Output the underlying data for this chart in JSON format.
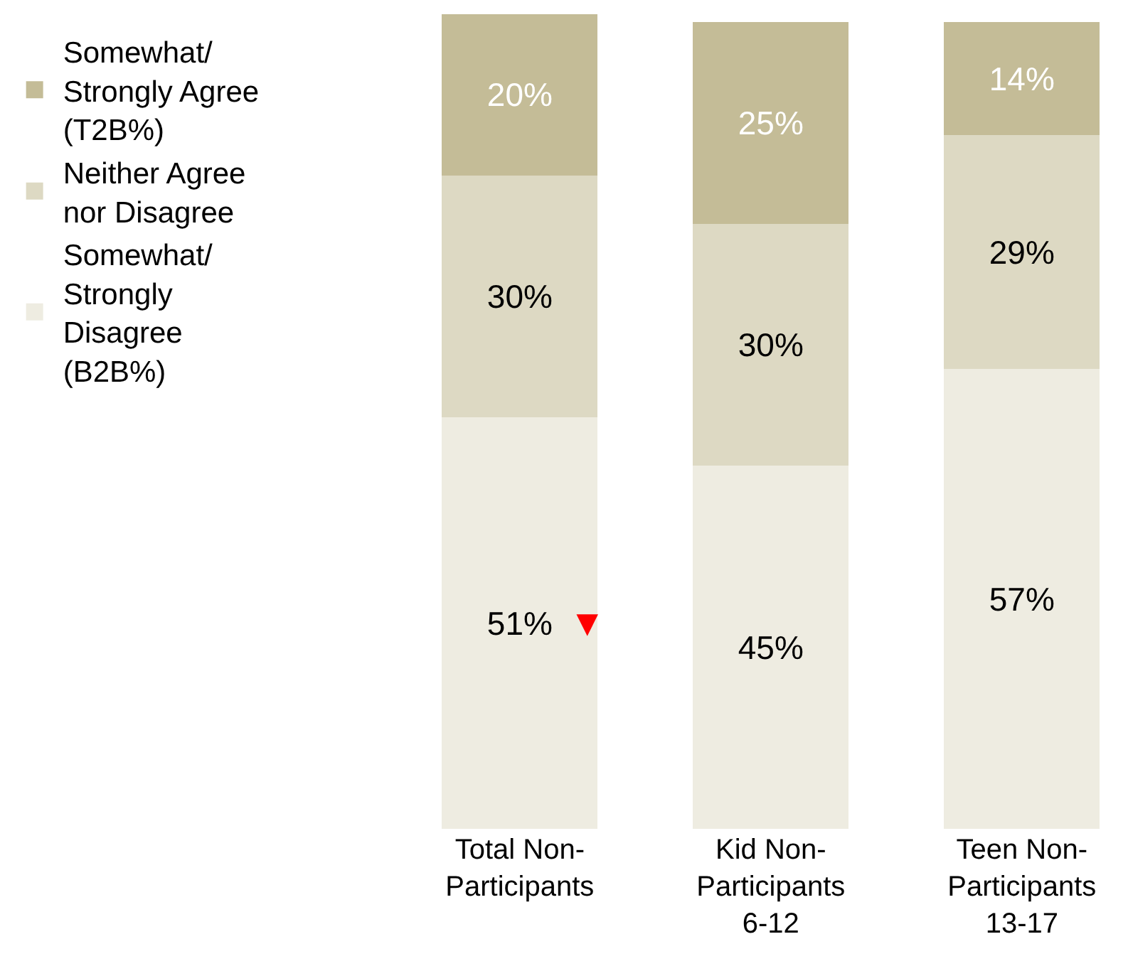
{
  "chart_data": {
    "type": "bar",
    "stacked": true,
    "legend": "left",
    "categories": [
      "Total Non-\nParticipants",
      "Kid Non-\nParticipants\n6-12",
      "Teen Non-\nParticipants\n13-17"
    ],
    "series": [
      {
        "name": "Somewhat/\nStrongly\nDisagree\n(B2B%)",
        "color": "#eeece1",
        "values": [
          51,
          45,
          57
        ],
        "value_labels": [
          "51%",
          "45%",
          "57%"
        ]
      },
      {
        "name": "Neither Agree\nnor Disagree",
        "color": "#ddd9c3",
        "values": [
          30,
          30,
          29
        ],
        "value_labels": [
          "30%",
          "30%",
          "29%"
        ]
      },
      {
        "name": "Somewhat/\nStrongly Agree\n(T2B%)",
        "color": "#c4bc97",
        "values": [
          20,
          25,
          14
        ],
        "value_labels": [
          "20%",
          "25%",
          "14%"
        ]
      }
    ],
    "annotations": [
      "▼"
    ]
  }
}
